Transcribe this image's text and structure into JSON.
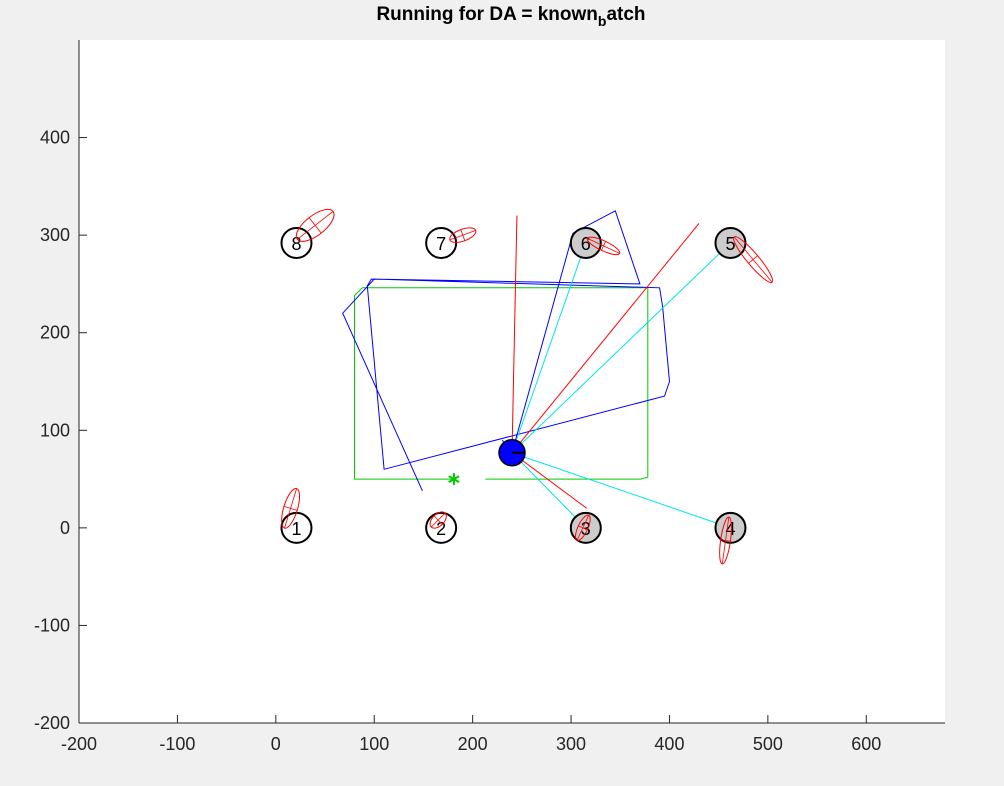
{
  "chart_data": {
    "type": "scatter",
    "title_main": "Running for DA = known",
    "title_sub": "b",
    "title_tail": "atch",
    "xlim": [
      -200,
      680
    ],
    "ylim": [
      -200,
      500
    ],
    "xticks": [
      -200,
      -100,
      0,
      100,
      200,
      300,
      400,
      500,
      600
    ],
    "yticks": [
      -200,
      -100,
      0,
      100,
      200,
      300,
      400
    ],
    "xtick_labels": [
      "-200",
      "-100",
      "0",
      "100",
      "200",
      "300",
      "400",
      "500",
      "600"
    ],
    "ytick_labels": [
      "-200",
      "-100",
      "0",
      "100",
      "200",
      "300",
      "400"
    ],
    "grid": false,
    "colors": {
      "axes_bg": "#ffffff",
      "figure_bg": "#f0f0f0",
      "robot_path": "#0000ff",
      "true_path": "#00cc00",
      "observation": "#00e5e5",
      "uncertainty": "#ff0000",
      "robot": "#0000ff",
      "landmark_seen": "#cccccc",
      "landmark_unseen": "#ffffff"
    },
    "landmarks": [
      {
        "id": "1",
        "x": 21,
        "y": 0,
        "seen": false
      },
      {
        "id": "2",
        "x": 168,
        "y": 0,
        "seen": false
      },
      {
        "id": "3",
        "x": 315,
        "y": 0,
        "seen": true
      },
      {
        "id": "4",
        "x": 462,
        "y": 0,
        "seen": true
      },
      {
        "id": "5",
        "x": 462,
        "y": 292,
        "seen": true
      },
      {
        "id": "6",
        "x": 315,
        "y": 292,
        "seen": true
      },
      {
        "id": "7",
        "x": 168,
        "y": 292,
        "seen": false
      },
      {
        "id": "8",
        "x": 21,
        "y": 292,
        "seen": false
      }
    ],
    "estimate_ellipses": [
      {
        "cx": 15,
        "cy": 20,
        "rx": 21,
        "ry": 7,
        "angle": 73
      },
      {
        "cx": 165,
        "cy": 8,
        "rx": 10,
        "ry": 6,
        "angle": 45
      },
      {
        "cx": 312,
        "cy": 0,
        "rx": 14,
        "ry": 5,
        "angle": 65
      },
      {
        "cx": 457,
        "cy": -13,
        "rx": 24,
        "ry": 5,
        "angle": 82
      },
      {
        "cx": 485,
        "cy": 275,
        "rx": 30,
        "ry": 6,
        "angle": -50
      },
      {
        "cx": 333,
        "cy": 289,
        "rx": 18,
        "ry": 5,
        "angle": -25
      },
      {
        "cx": 190,
        "cy": 300,
        "rx": 14,
        "ry": 6,
        "angle": 20
      },
      {
        "cx": 40,
        "cy": 310,
        "rx": 23,
        "ry": 10,
        "angle": 38
      }
    ],
    "robot": {
      "x": 240,
      "y": 77
    },
    "robot_start": {
      "x": 181,
      "y": 50
    },
    "true_path": [
      [
        181,
        50
      ],
      [
        80,
        50
      ],
      [
        80,
        238
      ],
      [
        88,
        246
      ],
      [
        378,
        246
      ],
      [
        378,
        52
      ],
      [
        371,
        50
      ],
      [
        213,
        50
      ]
    ],
    "estimated_path": [
      [
        149,
        38
      ],
      [
        68,
        220
      ],
      [
        100,
        255
      ],
      [
        390,
        246
      ],
      [
        393,
        227
      ],
      [
        400,
        150
      ],
      [
        395,
        135
      ],
      [
        110,
        60
      ],
      [
        93,
        248
      ],
      [
        97,
        255
      ],
      [
        370,
        250
      ],
      [
        345,
        325
      ],
      [
        302,
        302
      ],
      [
        240,
        77
      ],
      [
        230,
        90
      ]
    ],
    "observation_lines": [
      {
        "from": [
          240,
          77
        ],
        "to": [
          315,
          292
        ]
      },
      {
        "from": [
          240,
          77
        ],
        "to": [
          462,
          292
        ]
      },
      {
        "from": [
          240,
          77
        ],
        "to": [
          315,
          0
        ]
      },
      {
        "from": [
          240,
          77
        ],
        "to": [
          462,
          0
        ]
      }
    ],
    "uncertainty_lines": [
      {
        "from": [
          240,
          77
        ],
        "to": [
          245,
          320
        ]
      },
      {
        "from": [
          240,
          77
        ],
        "to": [
          430,
          312
        ]
      },
      {
        "from": [
          240,
          77
        ],
        "to": [
          316,
          20
        ]
      }
    ]
  }
}
